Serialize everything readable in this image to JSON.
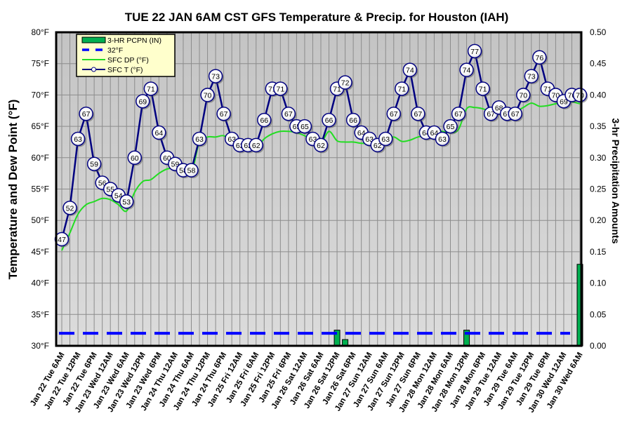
{
  "chart_data": {
    "type": "line",
    "title": "TUE 22 JAN 6AM CST GFS Temperature & Precip. for Houston (IAH)",
    "ylabel": "Temperature and Dew Point (°F)",
    "y2label": "3-hr Precipitation Amounts",
    "ylim": [
      30,
      80
    ],
    "y2lim": [
      0.0,
      0.5
    ],
    "yticks": [
      "30°F",
      "35°F",
      "40°F",
      "45°F",
      "50°F",
      "55°F",
      "60°F",
      "65°F",
      "70°F",
      "75°F",
      "80°F"
    ],
    "y2ticks": [
      "0.00",
      "0.05",
      "0.10",
      "0.15",
      "0.20",
      "0.25",
      "0.30",
      "0.35",
      "0.40",
      "0.45",
      "0.50"
    ],
    "x_interval_hours": 3,
    "xtick_labels": [
      "Jan 22 Tue 6AM",
      "Jan 22 Tue 12PM",
      "Jan 22 Tue 6PM",
      "Jan 23 Wed 12AM",
      "Jan 23 Wed 6AM",
      "Jan 23 Wed 12PM",
      "Jan 23 Wed 6PM",
      "Jan 24 Thu 12AM",
      "Jan 24 Thu 6AM",
      "Jan 24 Thu 12PM",
      "Jan 24 Thu 6PM",
      "Jan 25 Fri 12AM",
      "Jan 25 Fri 6AM",
      "Jan 25 Fri 12PM",
      "Jan 25 Fri 6PM",
      "Jan 26 Sat 12AM",
      "Jan 26 Sat 6AM",
      "Jan 26 Sat 12PM",
      "Jan 26 Sat 6PM",
      "Jan 27 Sun 12AM",
      "Jan 27 Sun 6AM",
      "Jan 27 Sun 12PM",
      "Jan 27 Sun 6PM",
      "Jan 28 Mon 12AM",
      "Jan 28 Mon 6AM",
      "Jan 28 Mon 12PM",
      "Jan 28 Mon 6PM",
      "Jan 29 Tue 12AM",
      "Jan 29 Tue 6AM",
      "Jan 29 Tue 12PM",
      "Jan 29 Tue 6PM",
      "Jan 30 Wed 12AM",
      "Jan 30 Wed 6AM"
    ],
    "legend": {
      "placement": "top-left",
      "entries": [
        {
          "label": "3-HR PCPN  (IN)",
          "kind": "bar",
          "color": "#00b050"
        },
        {
          "label": "32°F",
          "kind": "dashed",
          "color": "#0000ff"
        },
        {
          "label": "SFC DP (°F)",
          "kind": "line",
          "color": "#22dd22"
        },
        {
          "label": "SFC T (°F)",
          "kind": "line-marker",
          "color": "#000080"
        }
      ]
    },
    "series": [
      {
        "name": "SFC T (°F)",
        "color": "#000080",
        "values": [
          47,
          52,
          63,
          67,
          59,
          56,
          55,
          54,
          53,
          60,
          69,
          71,
          64,
          60,
          59,
          58,
          58,
          63,
          70,
          73,
          67,
          63,
          62,
          62,
          62,
          66,
          71,
          71,
          67,
          65,
          65,
          63,
          62,
          66,
          71,
          72,
          66,
          64,
          63,
          62,
          63,
          67,
          71,
          74,
          67,
          64,
          64,
          63,
          65,
          67,
          74,
          77,
          71,
          67,
          68,
          67,
          67,
          70,
          73,
          76,
          71,
          70,
          69,
          70,
          70
        ]
      },
      {
        "name": "SFC DP (°F)",
        "color": "#22dd22",
        "values": [
          45.2,
          48,
          51,
          52.5,
          53,
          53.5,
          53.3,
          52.5,
          51.5,
          54.5,
          56.2,
          56.5,
          57.5,
          58.2,
          58.3,
          58,
          57.5,
          62.5,
          63.3,
          63.3,
          63.5,
          62.6,
          61.5,
          61.3,
          61.5,
          63,
          63.8,
          64.2,
          64.2,
          64,
          63.5,
          62.8,
          62.3,
          64.2,
          62.7,
          62.5,
          62.5,
          62.3,
          62.3,
          62.5,
          62.8,
          63.3,
          62.6,
          62.8,
          63.3,
          63.5,
          64.2,
          64.2,
          64,
          64.5,
          67.8,
          68,
          67.8,
          67.3,
          67.3,
          67.2,
          67.3,
          68,
          68.7,
          68.2,
          68.3,
          68.6,
          68.8,
          68.9,
          68.6
        ]
      },
      {
        "name": "32°F",
        "color": "#0000ff",
        "constant": 32
      },
      {
        "name": "3-HR PCPN  (IN)",
        "color": "#00b050",
        "axis": "right",
        "bars": [
          {
            "index": 34,
            "value": 0.025
          },
          {
            "index": 35,
            "value": 0.01
          },
          {
            "index": 50,
            "value": 0.025
          },
          {
            "index": 64,
            "value": 0.13
          }
        ]
      }
    ]
  }
}
